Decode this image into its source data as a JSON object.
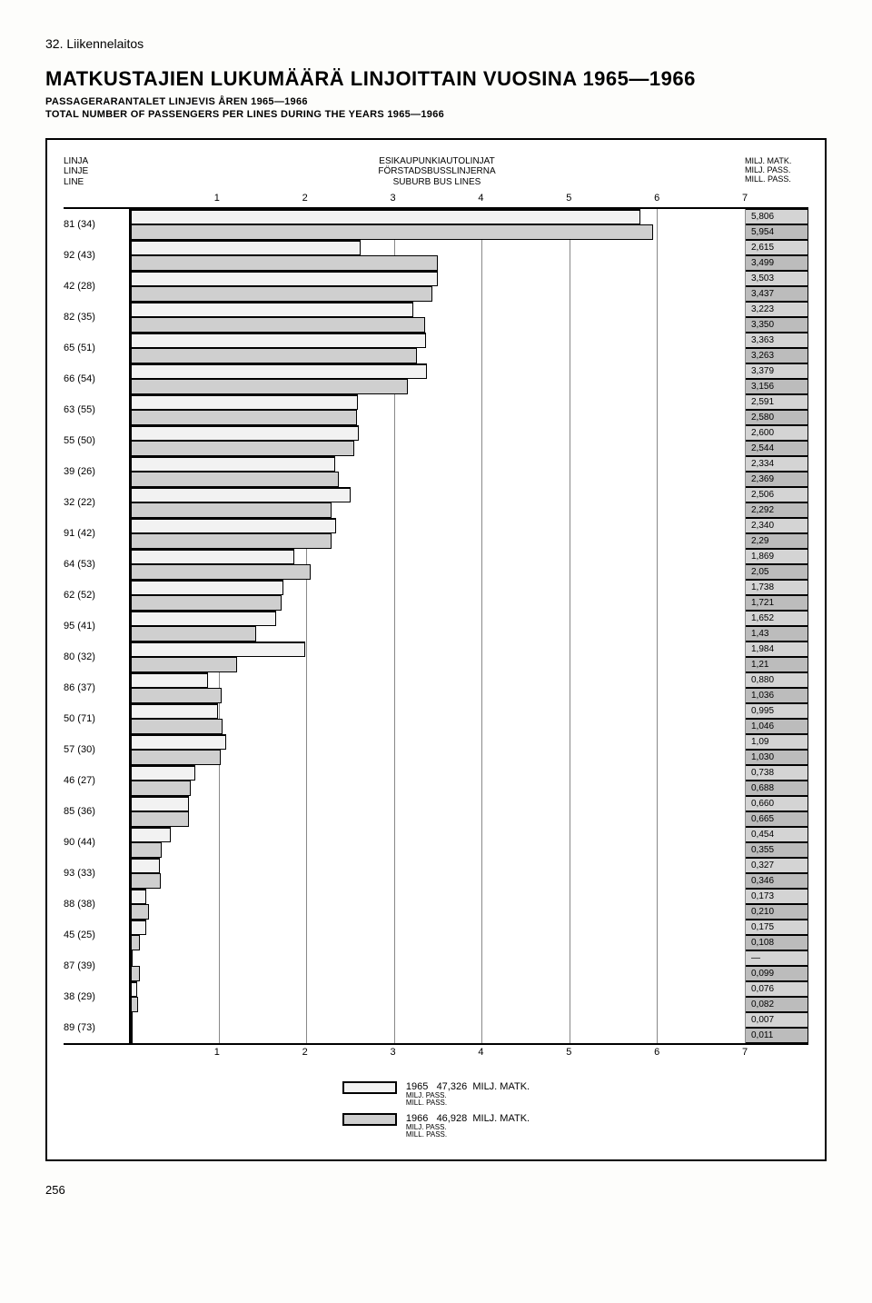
{
  "section_number": "32. Liikennelaitos",
  "title": "MATKUSTAJIEN LUKUMÄÄRÄ LINJOITTAIN VUOSINA 1965—1966",
  "subtitle_lines": [
    "PASSAGERARANTALET LINJEVIS ÅREN 1965—1966",
    "TOTAL NUMBER OF PASSENGERS PER LINES DURING THE YEARS 1965—1966"
  ],
  "axis_header": {
    "left": "LINJA\nLINJE\nLINE",
    "mid": "ESIKAUPUNKIAUTOLINJAT\nFÖRSTADSBUSSLINJERNA\nSUBURB BUS LINES",
    "right": "MILJ. MATK.\nMILJ. PASS.\nMILL. PASS."
  },
  "x_axis": {
    "min": 0,
    "max": 7,
    "ticks": [
      1,
      2,
      3,
      4,
      5,
      6,
      7
    ]
  },
  "bar_style": {
    "top_fill": "#f2f2f2",
    "bot_fill": "#cfcfcf",
    "border": "#000000",
    "grid_color": "#888888"
  },
  "value_cell_style": {
    "top_bg": "#d4d4d4",
    "bot_bg": "#bcbcbc"
  },
  "rows": [
    {
      "label": "81 (34)",
      "v1965": 5.806,
      "v1966": 5.954,
      "d1": "5,806",
      "d2": "5,954"
    },
    {
      "label": "92 (43)",
      "v1965": 2.615,
      "v1966": 3.499,
      "d1": "2,615",
      "d2": "3,499"
    },
    {
      "label": "42 (28)",
      "v1965": 3.503,
      "v1966": 3.437,
      "d1": "3,503",
      "d2": "3,437"
    },
    {
      "label": "82 (35)",
      "v1965": 3.223,
      "v1966": 3.35,
      "d1": "3,223",
      "d2": "3,350"
    },
    {
      "label": "65 (51)",
      "v1965": 3.363,
      "v1966": 3.263,
      "d1": "3,363",
      "d2": "3,263"
    },
    {
      "label": "66 (54)",
      "v1965": 3.379,
      "v1966": 3.156,
      "d1": "3,379",
      "d2": "3,156"
    },
    {
      "label": "63 (55)",
      "v1965": 2.591,
      "v1966": 2.58,
      "d1": "2,591",
      "d2": "2,580"
    },
    {
      "label": "55 (50)",
      "v1965": 2.6,
      "v1966": 2.544,
      "d1": "2,600",
      "d2": "2,544"
    },
    {
      "label": "39 (26)",
      "v1965": 2.334,
      "v1966": 2.369,
      "d1": "2,334",
      "d2": "2,369"
    },
    {
      "label": "32 (22)",
      "v1965": 2.506,
      "v1966": 2.292,
      "d1": "2,506",
      "d2": "2,292"
    },
    {
      "label": "91 (42)",
      "v1965": 2.34,
      "v1966": 2.29,
      "d1": "2,340",
      "d2": "2,29"
    },
    {
      "label": "64 (53)",
      "v1965": 1.869,
      "v1966": 2.05,
      "d1": "1,869",
      "d2": "2,05"
    },
    {
      "label": "62 (52)",
      "v1965": 1.738,
      "v1966": 1.721,
      "d1": "1,738",
      "d2": "1,721"
    },
    {
      "label": "95 (41)",
      "v1965": 1.652,
      "v1966": 1.43,
      "d1": "1,652",
      "d2": "1,43"
    },
    {
      "label": "80 (32)",
      "v1965": 1.984,
      "v1966": 1.21,
      "d1": "1,984",
      "d2": "1,21"
    },
    {
      "label": "86 (37)",
      "v1965": 0.88,
      "v1966": 1.036,
      "d1": "0,880",
      "d2": "1,036"
    },
    {
      "label": "50 (71)",
      "v1965": 0.995,
      "v1966": 1.046,
      "d1": "0,995",
      "d2": "1,046"
    },
    {
      "label": "57 (30)",
      "v1965": 1.09,
      "v1966": 1.03,
      "d1": "1,09",
      "d2": "1,030"
    },
    {
      "label": "46 (27)",
      "v1965": 0.738,
      "v1966": 0.688,
      "d1": "0,738",
      "d2": "0,688"
    },
    {
      "label": "85 (36)",
      "v1965": 0.66,
      "v1966": 0.665,
      "d1": "0,660",
      "d2": "0,665"
    },
    {
      "label": "90 (44)",
      "v1965": 0.454,
      "v1966": 0.355,
      "d1": "0,454",
      "d2": "0,355"
    },
    {
      "label": "93 (33)",
      "v1965": 0.327,
      "v1966": 0.346,
      "d1": "0,327",
      "d2": "0,346"
    },
    {
      "label": "88 (38)",
      "v1965": 0.173,
      "v1966": 0.21,
      "d1": "0,173",
      "d2": "0,210"
    },
    {
      "label": "45 (25)",
      "v1965": 0.175,
      "v1966": 0.108,
      "d1": "0,175",
      "d2": "0,108"
    },
    {
      "label": "87 (39)",
      "v1965": 0.0,
      "v1966": 0.099,
      "d1": "—",
      "d2": "0,099"
    },
    {
      "label": "38 (29)",
      "v1965": 0.076,
      "v1966": 0.082,
      "d1": "0,076",
      "d2": "0,082"
    },
    {
      "label": "89 (73)",
      "v1965": 0.007,
      "v1966": 0.011,
      "d1": "0,007",
      "d2": "0,011"
    }
  ],
  "legend": {
    "y1965": {
      "color": "#f2f2f2",
      "label": "1965",
      "total": "47,326",
      "unit": "MILJ. MATK.",
      "sub": "MILJ. PASS.\nMILL. PASS."
    },
    "y1966": {
      "color": "#cfcfcf",
      "label": "1966",
      "total": "46,928",
      "unit": "MILJ. MATK.",
      "sub": "MILJ. PASS.\nMILL. PASS."
    }
  },
  "page_number": "256"
}
